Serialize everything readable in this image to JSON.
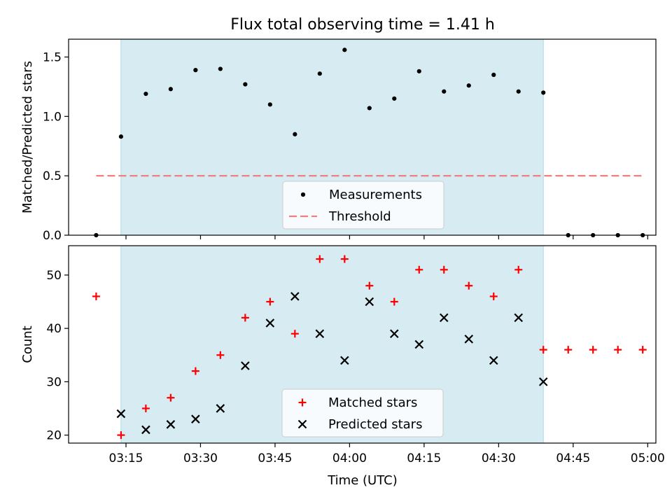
{
  "chart_data": {
    "title": "Flux total observing time = 1.41 h",
    "xlabel": "Time (UTC)",
    "x_ticks": [
      "03:15",
      "03:30",
      "03:45",
      "04:00",
      "04:15",
      "04:30",
      "04:45",
      "05:00"
    ],
    "shaded_span": [
      "03:14",
      "04:39"
    ],
    "shade_color": "#add8e6",
    "times": [
      "03:09",
      "03:14",
      "03:19",
      "03:24",
      "03:29",
      "03:34",
      "03:39",
      "03:44",
      "03:49",
      "03:54",
      "03:59",
      "04:04",
      "04:09",
      "04:14",
      "04:19",
      "04:24",
      "04:29",
      "04:34",
      "04:39",
      "04:44",
      "04:49",
      "04:54",
      "04:59"
    ],
    "panels": [
      {
        "type": "scatter",
        "ylabel": "Matched/Predicted stars",
        "ylim": [
          0,
          1.65
        ],
        "y_ticks": [
          "0.0",
          "0.5",
          "1.0",
          "1.5"
        ],
        "legend": {
          "position": "lower center",
          "entries": [
            "Measurements",
            "Threshold"
          ]
        },
        "series": [
          {
            "name": "Measurements",
            "marker": "dot",
            "color": "#000000",
            "values": [
              0.0,
              0.83,
              1.19,
              1.23,
              1.39,
              1.4,
              1.27,
              1.1,
              0.85,
              1.36,
              1.56,
              1.07,
              1.15,
              1.38,
              1.21,
              1.26,
              1.35,
              1.21,
              1.2,
              0.0,
              0.0,
              0.0,
              0.0
            ]
          },
          {
            "name": "Threshold",
            "marker": "dashed-line",
            "color": "#f08080",
            "value": 0.5,
            "x_range": [
              "03:09",
              "04:59"
            ]
          }
        ]
      },
      {
        "type": "scatter",
        "ylabel": "Count",
        "ylim": [
          18.5,
          55.5
        ],
        "y_ticks": [
          "20",
          "30",
          "40",
          "50"
        ],
        "legend": {
          "position": "lower center",
          "entries": [
            "Matched stars",
            "Predicted stars"
          ]
        },
        "series": [
          {
            "name": "Matched stars",
            "marker": "plus",
            "color": "#ff0000",
            "times": [
              "03:09",
              "03:14",
              "03:19",
              "03:24",
              "03:29",
              "03:34",
              "03:39",
              "03:44",
              "03:49",
              "03:54",
              "03:59",
              "04:04",
              "04:09",
              "04:14",
              "04:19",
              "04:24",
              "04:29",
              "04:34",
              "04:39",
              "04:44",
              "04:49",
              "04:54",
              "04:59"
            ],
            "values": [
              46,
              20,
              25,
              27,
              32,
              35,
              42,
              45,
              39,
              53,
              53,
              48,
              45,
              51,
              51,
              48,
              46,
              51,
              36,
              36,
              36,
              36,
              36
            ]
          },
          {
            "name": "Predicted stars",
            "marker": "x",
            "color": "#000000",
            "times": [
              "03:14",
              "03:19",
              "03:24",
              "03:29",
              "03:34",
              "03:39",
              "03:44",
              "03:49",
              "03:54",
              "03:59",
              "04:04",
              "04:09",
              "04:14",
              "04:19",
              "04:24",
              "04:29",
              "04:34",
              "04:39"
            ],
            "values": [
              24,
              21,
              22,
              23,
              25,
              33,
              41,
              46,
              39,
              34,
              45,
              39,
              37,
              42,
              38,
              34,
              42,
              30
            ]
          }
        ]
      }
    ]
  }
}
